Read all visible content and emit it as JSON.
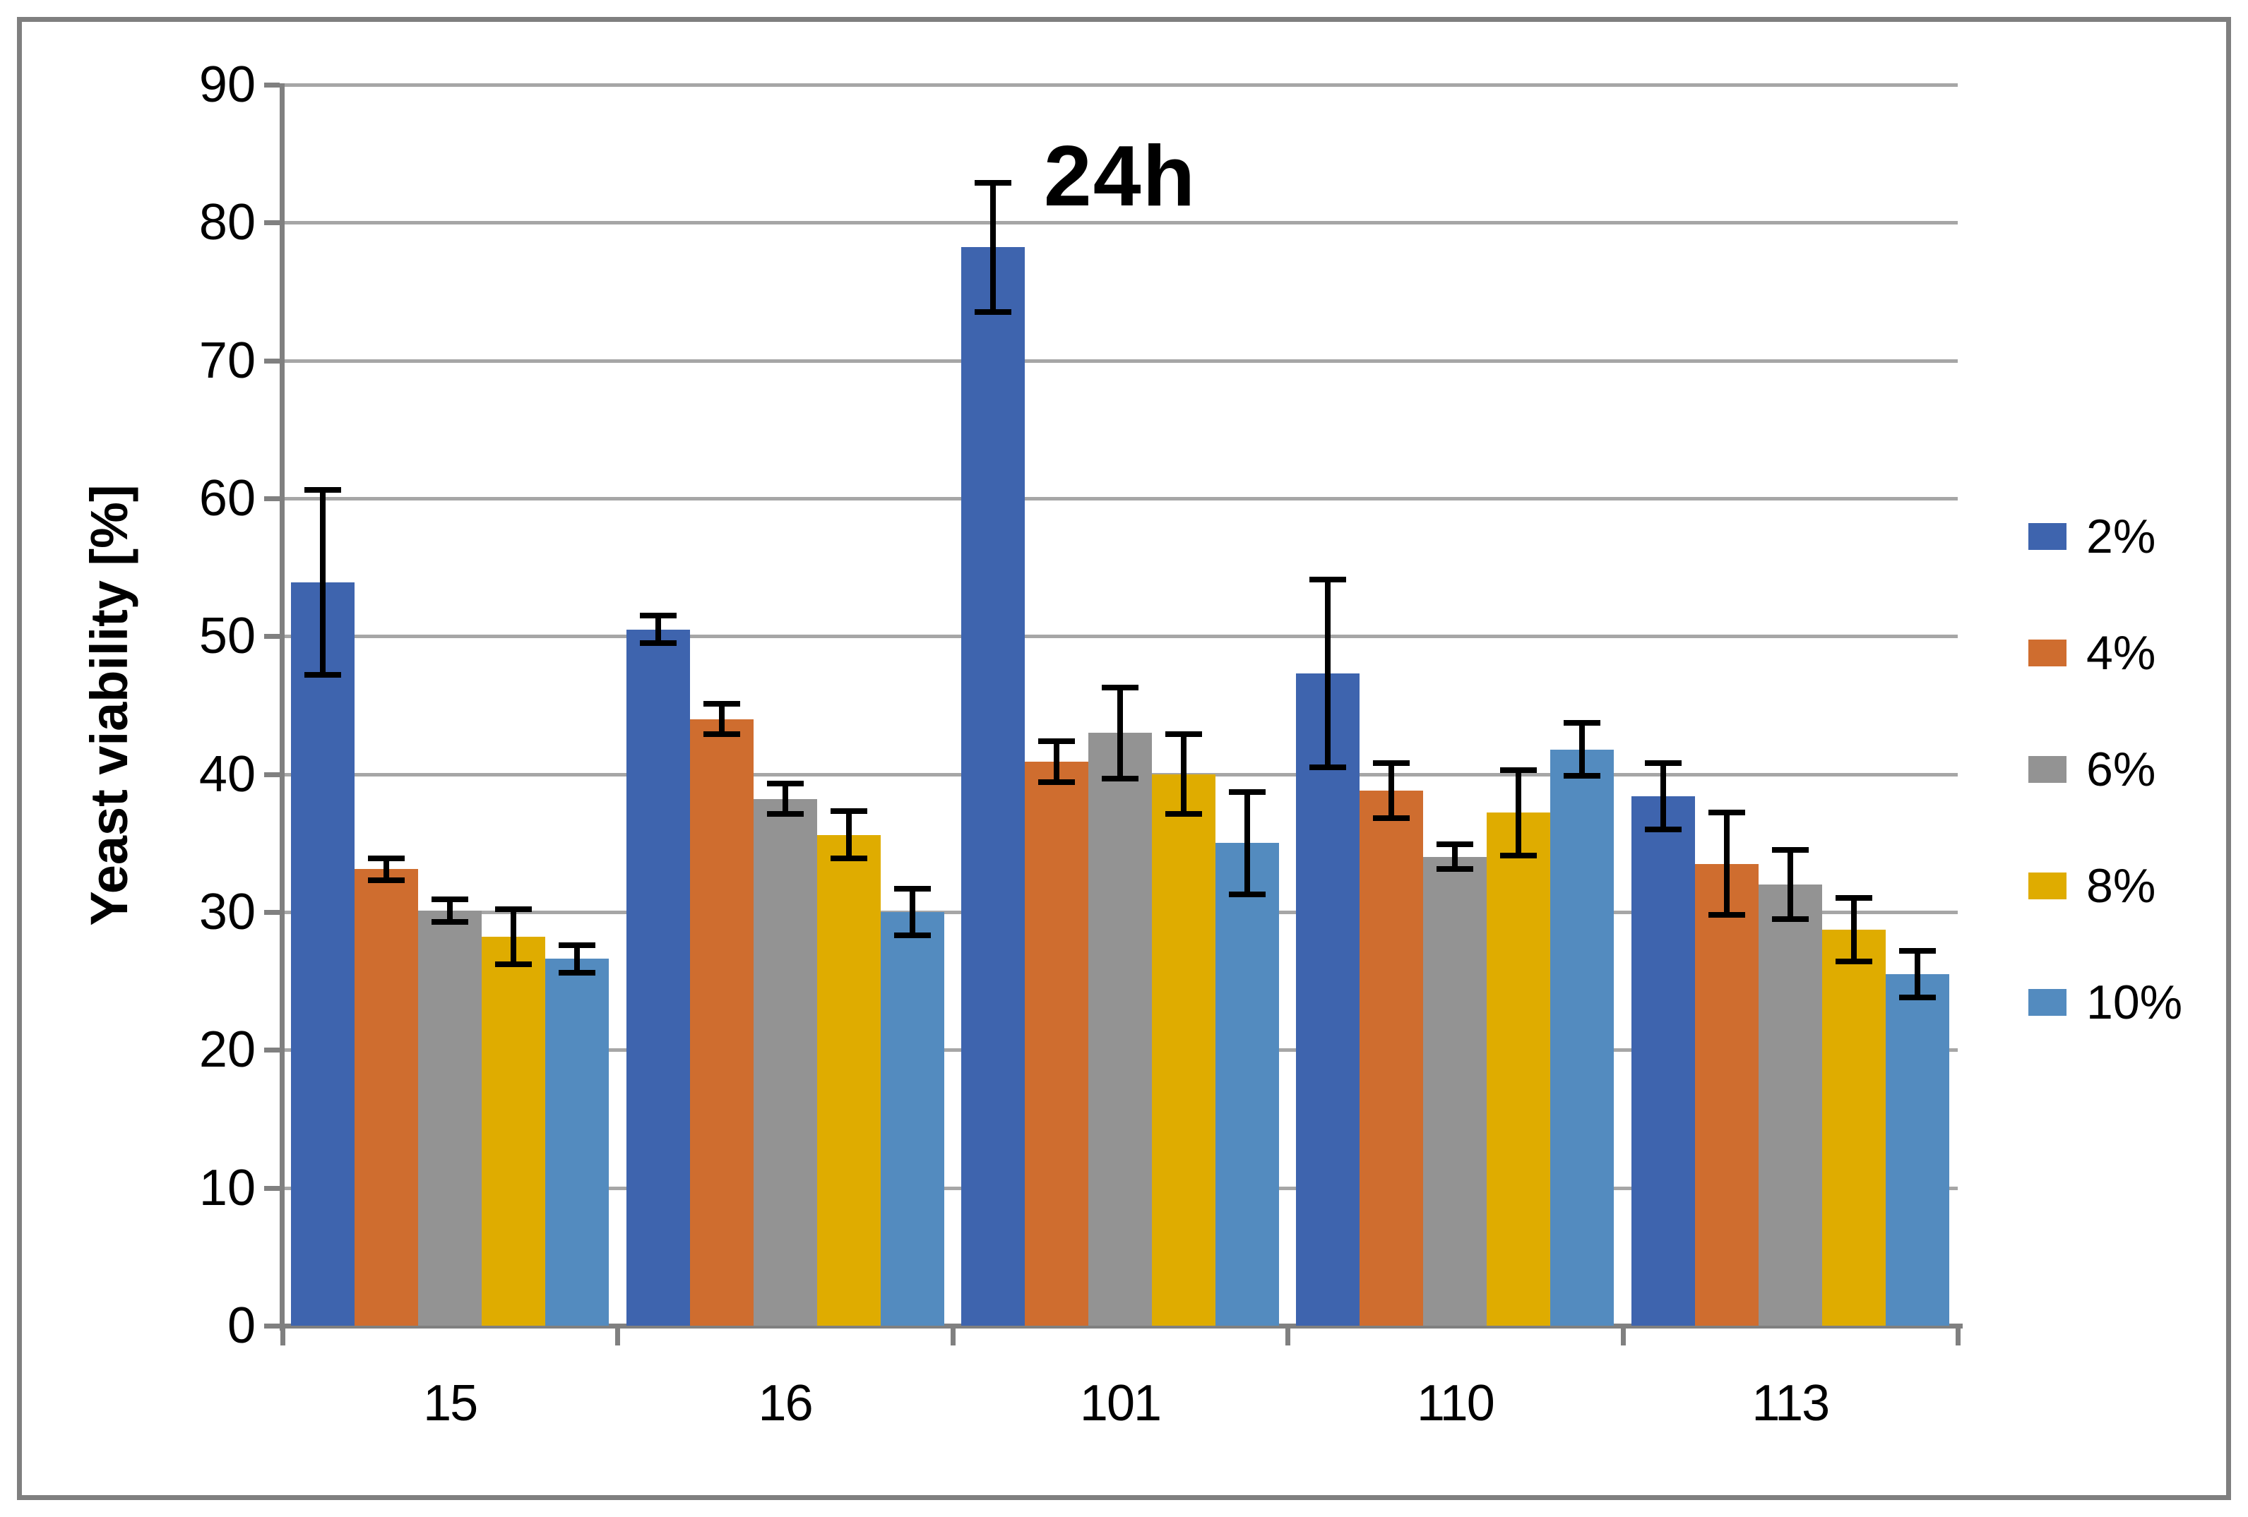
{
  "chart_data": {
    "type": "bar",
    "title": "24h",
    "xlabel": "",
    "ylabel": "Yeast viability [%]",
    "categories": [
      "15",
      "16",
      "101",
      "110",
      "113"
    ],
    "y_ticks": [
      0,
      10,
      20,
      30,
      40,
      50,
      60,
      70,
      80,
      90
    ],
    "ylim": [
      0,
      90
    ],
    "grid": "horizontal",
    "legend_position": "right",
    "error_bars": true,
    "series": [
      {
        "name": "2%",
        "color": "#3e64ae",
        "values": [
          53.9,
          50.5,
          78.2,
          47.3,
          38.4
        ],
        "errors": [
          6.7,
          1.0,
          4.7,
          6.8,
          2.4
        ]
      },
      {
        "name": "4%",
        "color": "#cf6d2f",
        "values": [
          33.1,
          44.0,
          40.9,
          38.8,
          33.5
        ],
        "errors": [
          0.8,
          1.1,
          1.5,
          2.0,
          3.7
        ]
      },
      {
        "name": "6%",
        "color": "#939393",
        "values": [
          30.1,
          38.2,
          43.0,
          34.0,
          32.0
        ],
        "errors": [
          0.8,
          1.1,
          3.3,
          0.9,
          2.5
        ]
      },
      {
        "name": "8%",
        "color": "#dfac00",
        "values": [
          28.2,
          35.6,
          40.0,
          37.2,
          28.7
        ],
        "errors": [
          2.0,
          1.7,
          2.9,
          3.1,
          2.3
        ]
      },
      {
        "name": "10%",
        "color": "#538bbf",
        "values": [
          26.6,
          30.0,
          35.0,
          41.8,
          25.5
        ],
        "errors": [
          1.0,
          1.7,
          3.7,
          1.9,
          1.7
        ]
      }
    ],
    "colors": {
      "gridline": "#a6a6a6",
      "axis": "#808080",
      "frame": "#7f7f7f",
      "error_bar": "#000000",
      "text": "#000000"
    }
  }
}
